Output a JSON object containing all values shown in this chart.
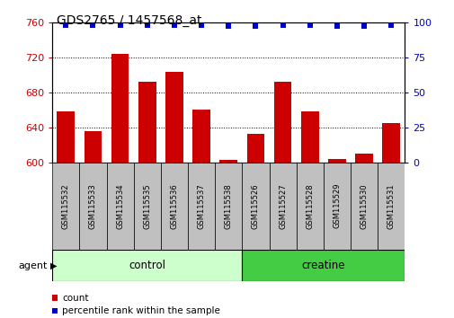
{
  "title": "GDS2765 / 1457568_at",
  "samples": [
    "GSM115532",
    "GSM115533",
    "GSM115534",
    "GSM115535",
    "GSM115536",
    "GSM115537",
    "GSM115538",
    "GSM115526",
    "GSM115527",
    "GSM115528",
    "GSM115529",
    "GSM115530",
    "GSM115531"
  ],
  "counts": [
    658,
    635,
    724,
    692,
    703,
    660,
    603,
    632,
    692,
    658,
    604,
    610,
    645
  ],
  "percentiles": [
    98,
    98,
    98,
    98,
    98,
    98,
    97,
    97,
    98,
    98,
    97,
    97,
    98
  ],
  "control_count": 7,
  "creatine_count": 6,
  "bar_color": "#cc0000",
  "dot_color": "#0000cc",
  "ylim_left": [
    600,
    760
  ],
  "ylim_right": [
    0,
    100
  ],
  "yticks_left": [
    600,
    640,
    680,
    720,
    760
  ],
  "yticks_right": [
    0,
    25,
    50,
    75,
    100
  ],
  "grid_ticks": [
    640,
    680,
    720
  ],
  "label_bg": "#c0c0c0",
  "control_color_light": "#ccffcc",
  "creatine_color": "#44cc44",
  "agent_label": "agent"
}
